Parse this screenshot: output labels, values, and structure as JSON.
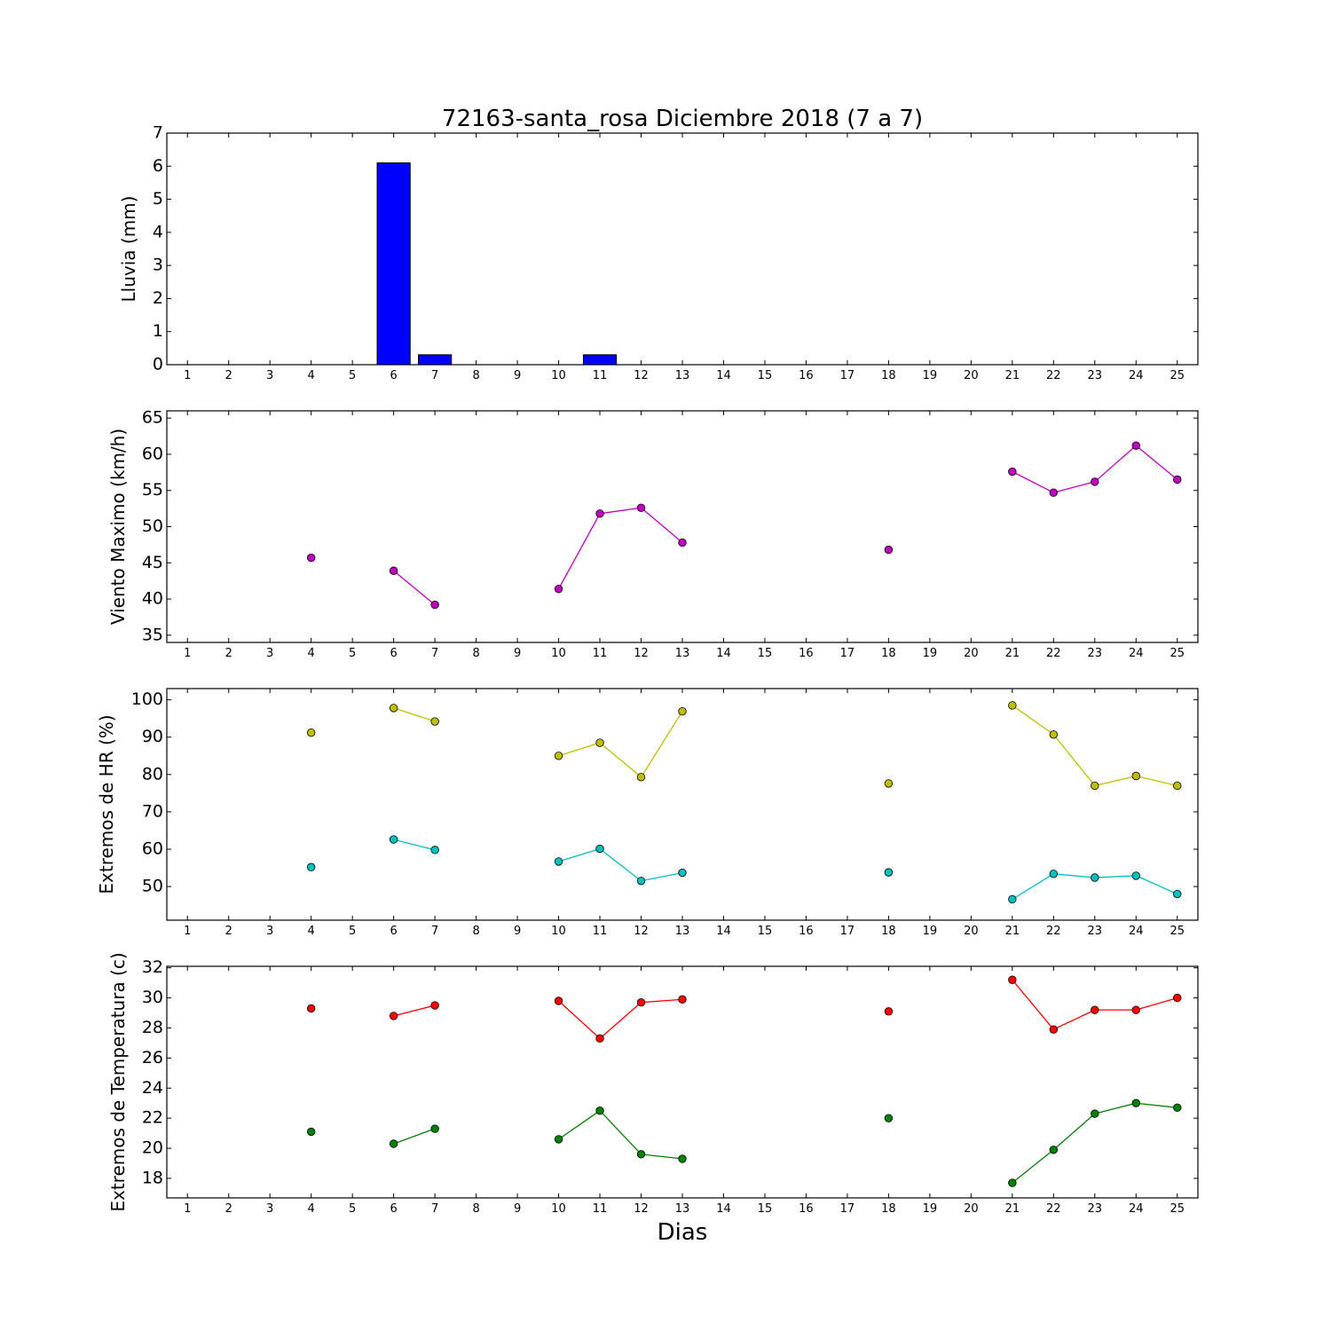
{
  "chart_data": [
    {
      "type": "bar",
      "title": "72163-santa_rosa Diciembre 2018  (7 a 7)",
      "ylabel": "Lluvia (mm)",
      "xlabel": "",
      "ylim": [
        0,
        7
      ],
      "yticks": [
        0,
        1,
        2,
        3,
        4,
        5,
        6,
        7
      ],
      "categories": [
        "1",
        "2",
        "3",
        "4",
        "5",
        "6",
        "7",
        "8",
        "9",
        "10",
        "11",
        "12",
        "13",
        "14",
        "15",
        "16",
        "17",
        "18",
        "19",
        "20",
        "21",
        "22",
        "23",
        "24",
        "25"
      ],
      "series": [
        {
          "color": "#0000ff",
          "values": [
            null,
            null,
            null,
            0,
            null,
            6.1,
            0.3,
            null,
            null,
            0,
            0.3,
            0,
            0,
            null,
            null,
            null,
            null,
            0,
            null,
            null,
            0,
            0,
            0,
            0,
            0
          ]
        }
      ]
    },
    {
      "type": "line",
      "ylabel": "Viento Maximo (km/h)",
      "xlabel": "",
      "ylim": [
        34,
        66
      ],
      "yticks": [
        35,
        40,
        45,
        50,
        55,
        60,
        65
      ],
      "categories": [
        "1",
        "2",
        "3",
        "4",
        "5",
        "6",
        "7",
        "8",
        "9",
        "10",
        "11",
        "12",
        "13",
        "14",
        "15",
        "16",
        "17",
        "18",
        "19",
        "20",
        "21",
        "22",
        "23",
        "24",
        "25"
      ],
      "series": [
        {
          "color": "#bf00bf",
          "values": [
            null,
            null,
            null,
            45.7,
            null,
            43.9,
            39.2,
            null,
            null,
            41.4,
            51.8,
            52.6,
            47.8,
            null,
            null,
            null,
            null,
            46.8,
            null,
            null,
            57.6,
            54.7,
            56.2,
            61.2,
            56.5
          ]
        }
      ]
    },
    {
      "type": "line",
      "ylabel": "Extremos de HR (%)",
      "xlabel": "",
      "ylim": [
        41,
        103
      ],
      "yticks": [
        50,
        60,
        70,
        80,
        90,
        100
      ],
      "categories": [
        "1",
        "2",
        "3",
        "4",
        "5",
        "6",
        "7",
        "8",
        "9",
        "10",
        "11",
        "12",
        "13",
        "14",
        "15",
        "16",
        "17",
        "18",
        "19",
        "20",
        "21",
        "22",
        "23",
        "24",
        "25"
      ],
      "series": [
        {
          "color": "#bfbf00",
          "values": [
            null,
            null,
            null,
            91.2,
            null,
            97.8,
            94.2,
            null,
            null,
            85.0,
            88.5,
            79.3,
            96.9,
            null,
            null,
            null,
            null,
            77.6,
            null,
            null,
            98.5,
            90.7,
            77.0,
            79.6,
            77.0
          ]
        },
        {
          "color": "#00bfbf",
          "values": [
            null,
            null,
            null,
            55.2,
            null,
            62.6,
            59.8,
            null,
            null,
            56.7,
            60.1,
            51.5,
            53.7,
            null,
            null,
            null,
            null,
            53.8,
            null,
            null,
            46.6,
            53.4,
            52.4,
            52.9,
            48.0
          ]
        }
      ]
    },
    {
      "type": "line",
      "ylabel": "Extremos de Temperatura (c)",
      "xlabel": "Dias",
      "ylim": [
        16.7,
        32.1
      ],
      "yticks": [
        18,
        20,
        22,
        24,
        26,
        28,
        30,
        32
      ],
      "categories": [
        "1",
        "2",
        "3",
        "4",
        "5",
        "6",
        "7",
        "8",
        "9",
        "10",
        "11",
        "12",
        "13",
        "14",
        "15",
        "16",
        "17",
        "18",
        "19",
        "20",
        "21",
        "22",
        "23",
        "24",
        "25"
      ],
      "series": [
        {
          "color": "#ff0000",
          "values": [
            null,
            null,
            null,
            29.3,
            null,
            28.8,
            29.5,
            null,
            null,
            29.8,
            27.3,
            29.7,
            29.9,
            null,
            null,
            null,
            null,
            29.1,
            null,
            null,
            31.2,
            27.9,
            29.2,
            29.2,
            30.0
          ]
        },
        {
          "color": "#008000",
          "values": [
            null,
            null,
            null,
            21.1,
            null,
            20.3,
            21.3,
            null,
            null,
            20.6,
            22.5,
            19.6,
            19.3,
            null,
            null,
            null,
            null,
            22.0,
            null,
            null,
            17.7,
            19.9,
            22.3,
            23.0,
            22.7
          ]
        }
      ]
    }
  ]
}
